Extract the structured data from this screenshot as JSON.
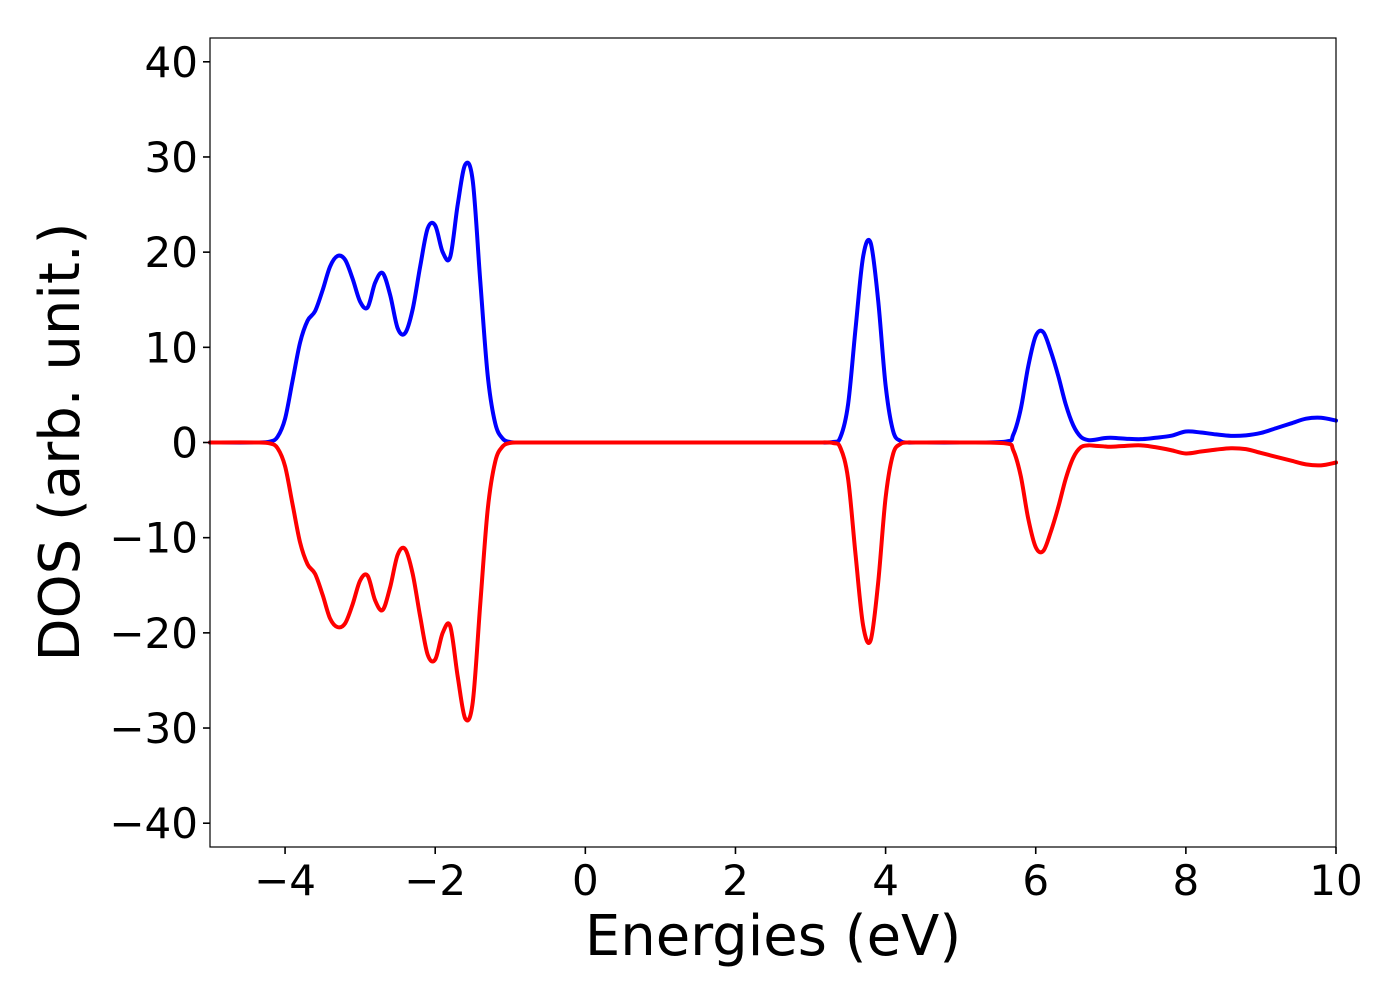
{
  "chart_data": {
    "type": "line",
    "xlabel": "Energies (eV)",
    "ylabel": "DOS (arb. unit.)",
    "xlim": [
      -5,
      10
    ],
    "ylim": [
      -42.5,
      42.5
    ],
    "grid": false,
    "x_ticks": [
      -4,
      -2,
      0,
      2,
      4,
      6,
      8,
      10
    ],
    "y_ticks": [
      -40,
      -30,
      -20,
      -10,
      0,
      10,
      20,
      30,
      40
    ],
    "series": [
      {
        "color": "#0000ff",
        "x": [
          -5.0,
          -4.4,
          -4.2,
          -4.1,
          -4.0,
          -3.9,
          -3.8,
          -3.7,
          -3.6,
          -3.5,
          -3.4,
          -3.3,
          -3.2,
          -3.1,
          -3.0,
          -2.9,
          -2.8,
          -2.7,
          -2.6,
          -2.5,
          -2.4,
          -2.3,
          -2.2,
          -2.1,
          -2.0,
          -1.9,
          -1.8,
          -1.7,
          -1.6,
          -1.5,
          -1.4,
          -1.3,
          -1.2,
          -1.1,
          -1.0,
          -0.9,
          -0.8,
          -0.7,
          -0.6,
          -0.5,
          -0.4,
          0.0,
          1.0,
          2.0,
          3.0,
          3.3,
          3.4,
          3.5,
          3.6,
          3.7,
          3.8,
          3.9,
          4.0,
          4.1,
          4.2,
          4.3,
          4.4,
          5.0,
          5.6,
          5.7,
          5.8,
          5.9,
          6.0,
          6.1,
          6.2,
          6.3,
          6.4,
          6.5,
          6.6,
          6.7,
          6.8,
          6.9,
          7.0,
          7.2,
          7.4,
          7.6,
          7.8,
          8.0,
          8.2,
          8.4,
          8.6,
          8.8,
          9.0,
          9.2,
          9.4,
          9.6,
          9.8,
          10.0
        ],
        "y": [
          0,
          0,
          0.1,
          0.6,
          2.5,
          6.5,
          10.5,
          12.8,
          13.8,
          16.0,
          18.5,
          19.6,
          19.2,
          17.2,
          14.8,
          14.2,
          16.8,
          17.8,
          15.5,
          12.0,
          11.5,
          14.0,
          18.5,
          22.5,
          22.8,
          20.0,
          19.5,
          25.0,
          29.2,
          27.5,
          17.0,
          7.0,
          2.0,
          0.4,
          0.05,
          0,
          0,
          0,
          0,
          0,
          0,
          0,
          0,
          0,
          0,
          0.05,
          0.6,
          4.0,
          12.0,
          19.5,
          21.0,
          15.0,
          6.0,
          1.2,
          0.15,
          0,
          0,
          0,
          0.1,
          0.8,
          3.5,
          8.0,
          11.2,
          11.6,
          9.6,
          7.0,
          4.0,
          1.8,
          0.6,
          0.25,
          0.3,
          0.45,
          0.5,
          0.4,
          0.35,
          0.5,
          0.7,
          1.15,
          1.05,
          0.85,
          0.7,
          0.75,
          1.0,
          1.5,
          2.0,
          2.5,
          2.6,
          2.3
        ]
      },
      {
        "color": "#ff0000",
        "x": [
          -5.0,
          -4.4,
          -4.2,
          -4.1,
          -4.0,
          -3.9,
          -3.8,
          -3.7,
          -3.6,
          -3.5,
          -3.4,
          -3.3,
          -3.2,
          -3.1,
          -3.0,
          -2.9,
          -2.8,
          -2.7,
          -2.6,
          -2.5,
          -2.4,
          -2.3,
          -2.2,
          -2.1,
          -2.0,
          -1.9,
          -1.8,
          -1.7,
          -1.6,
          -1.5,
          -1.4,
          -1.3,
          -1.2,
          -1.1,
          -1.0,
          -0.9,
          -0.8,
          -0.7,
          -0.6,
          -0.5,
          -0.4,
          0.0,
          1.0,
          2.0,
          3.0,
          3.3,
          3.4,
          3.5,
          3.6,
          3.7,
          3.8,
          3.9,
          4.0,
          4.1,
          4.2,
          4.3,
          4.4,
          5.0,
          5.6,
          5.7,
          5.8,
          5.9,
          6.0,
          6.1,
          6.2,
          6.3,
          6.4,
          6.5,
          6.6,
          6.7,
          6.8,
          6.9,
          7.0,
          7.2,
          7.4,
          7.6,
          7.8,
          8.0,
          8.2,
          8.4,
          8.6,
          8.8,
          9.0,
          9.2,
          9.4,
          9.6,
          9.8,
          10.0
        ],
        "y": [
          0,
          0,
          -0.1,
          -0.6,
          -2.5,
          -6.5,
          -10.5,
          -12.8,
          -13.8,
          -16.0,
          -18.5,
          -19.4,
          -19.0,
          -17.0,
          -14.5,
          -14.0,
          -16.6,
          -17.6,
          -15.2,
          -11.8,
          -11.2,
          -13.8,
          -18.3,
          -22.3,
          -22.8,
          -20.0,
          -19.3,
          -24.6,
          -29.0,
          -27.3,
          -17.0,
          -7.0,
          -2.0,
          -0.4,
          -0.05,
          0,
          0,
          0,
          0,
          0,
          0,
          0,
          0,
          0,
          0,
          -0.05,
          -0.6,
          -3.8,
          -11.8,
          -19.2,
          -20.8,
          -14.8,
          -5.8,
          -1.2,
          -0.15,
          0,
          0,
          0,
          -0.1,
          -0.8,
          -3.5,
          -8.0,
          -11.0,
          -11.4,
          -9.4,
          -6.8,
          -3.8,
          -1.6,
          -0.5,
          -0.3,
          -0.35,
          -0.4,
          -0.45,
          -0.35,
          -0.3,
          -0.5,
          -0.8,
          -1.15,
          -0.95,
          -0.75,
          -0.6,
          -0.7,
          -1.1,
          -1.5,
          -1.9,
          -2.3,
          -2.4,
          -2.1
        ]
      }
    ]
  }
}
